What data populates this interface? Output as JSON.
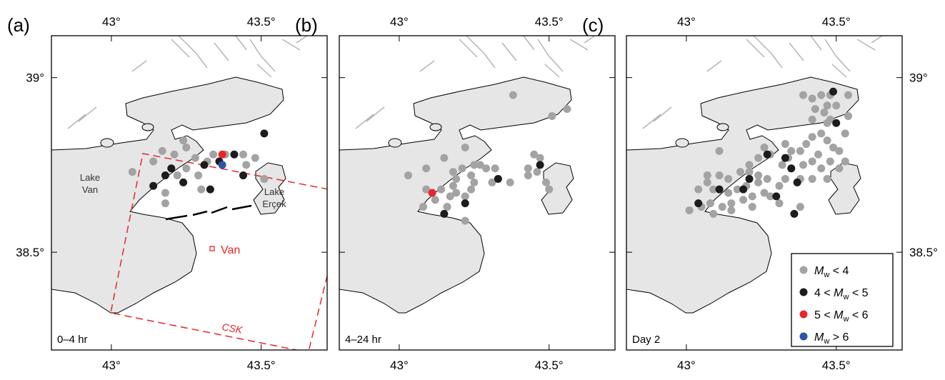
{
  "panels": [
    {
      "label": "(a)",
      "time_label": "0–4 hr",
      "annotations": {
        "lake_van": [
          "Lake",
          "Van"
        ],
        "lake_ercek": [
          "Lake",
          "Erçek"
        ],
        "city": "Van",
        "fault_zone": "CSK"
      },
      "events": [
        {
          "lon": [
            43.07,
            43.14,
            43.17,
            43.21,
            43.24,
            43.25,
            43.28,
            43.25,
            43.22,
            43.18,
            43.29,
            43.32,
            43.34,
            43.38,
            43.44,
            43.45,
            43.51,
            43.18,
            43.3,
            43.48
          ],
          "lat": [
            38.73,
            38.76,
            38.79,
            38.78,
            38.82,
            38.8,
            38.77,
            38.74,
            38.72,
            38.67,
            38.72,
            38.76,
            38.78,
            38.78,
            38.78,
            38.75,
            38.71,
            38.64,
            38.68,
            38.77
          ]
        },
        {
          "lon": [
            43.14,
            43.18,
            43.2,
            43.24,
            43.31,
            43.33,
            43.36,
            43.41,
            43.44,
            43.51
          ],
          "lat": [
            38.69,
            38.72,
            38.74,
            38.7,
            38.75,
            38.68,
            38.76,
            38.78,
            38.72,
            38.84
          ]
        },
        {
          "lon": [
            43.37
          ],
          "lat": [
            38.78
          ]
        },
        {
          "lon": [
            43.37
          ],
          "lat": [
            38.75
          ]
        }
      ]
    },
    {
      "label": "(b)",
      "time_label": "4–24 hr",
      "events": [
        {
          "lon": [
            43.38,
            43.51,
            43.56,
            43.22,
            43.15,
            43.03,
            43.09,
            43.18,
            43.21,
            43.25,
            43.27,
            43.24,
            43.25,
            43.19,
            43.18,
            43.14,
            43.17,
            43.19,
            43.22,
            43.24,
            43.09,
            43.12,
            43.08,
            43.16,
            43.22,
            43.29,
            43.32,
            43.37,
            43.45,
            43.47,
            43.43,
            43.46,
            43.43,
            43.49,
            43.5,
            43.31
          ],
          "lat": [
            38.95,
            38.89,
            38.91,
            38.8,
            38.77,
            38.72,
            38.74,
            38.73,
            38.74,
            38.75,
            38.75,
            38.72,
            38.7,
            38.71,
            38.69,
            38.68,
            38.66,
            38.67,
            38.66,
            38.68,
            38.68,
            38.65,
            38.63,
            38.63,
            38.59,
            38.74,
            38.74,
            38.7,
            38.78,
            38.77,
            38.74,
            38.73,
            38.72,
            38.7,
            38.68,
            38.7
          ]
        },
        {
          "lon": [
            43.33,
            43.22,
            43.15,
            43.47
          ],
          "lat": [
            38.71,
            38.64,
            38.61,
            38.75
          ]
        },
        {
          "lon": [
            43.11
          ],
          "lat": [
            38.67
          ]
        },
        {
          "lon": [],
          "lat": []
        }
      ]
    },
    {
      "label": "(c)",
      "time_label": "Day 2",
      "events": [
        {
          "lon": [
            43.39,
            43.42,
            43.45,
            43.48,
            43.47,
            43.43,
            43.46,
            43.5,
            43.54,
            43.42,
            43.47,
            43.42,
            43.45,
            43.54,
            43.53,
            43.47,
            43.49,
            43.51,
            43.44,
            43.4,
            43.33,
            43.35,
            43.38,
            43.34,
            43.32,
            43.35,
            43.39,
            43.42,
            43.45,
            43.48,
            43.51,
            43.53,
            43.47,
            43.42,
            43.38,
            43.33,
            43.28,
            43.26,
            43.24,
            43.21,
            43.18,
            43.14,
            43.11,
            43.07,
            43.04,
            43.09,
            43.14,
            43.17,
            43.2,
            43.24,
            43.27,
            43.31,
            43.26,
            43.22,
            43.19,
            43.15,
            43.12,
            43.08,
            43.05,
            43.01,
            43.09,
            43.15,
            43.22,
            43.28,
            43.31,
            43.21,
            43.24,
            43.11,
            43.07,
            43.48,
            43.38
          ],
          "lat": [
            38.95,
            38.94,
            38.95,
            38.95,
            38.92,
            38.91,
            38.9,
            38.92,
            38.95,
            38.88,
            38.87,
            38.83,
            38.84,
            38.89,
            38.84,
            38.82,
            38.8,
            38.79,
            38.78,
            38.81,
            38.81,
            38.79,
            38.79,
            38.77,
            38.75,
            38.74,
            38.75,
            38.76,
            38.74,
            38.76,
            38.74,
            38.76,
            38.71,
            38.71,
            38.71,
            38.71,
            38.78,
            38.8,
            38.77,
            38.75,
            38.73,
            38.71,
            38.72,
            38.7,
            38.68,
            38.68,
            38.67,
            38.68,
            38.69,
            38.7,
            38.71,
            38.69,
            38.67,
            38.66,
            38.65,
            38.64,
            38.63,
            38.64,
            38.63,
            38.62,
            38.61,
            38.62,
            38.63,
            38.66,
            38.64,
            38.73,
            38.72,
            38.79,
            38.72,
            38.88,
            38.63
          ]
        },
        {
          "lon": [
            43.49,
            43.5,
            43.27,
            43.33,
            43.35,
            43.21,
            43.37,
            43.19,
            43.11,
            43.3,
            43.04,
            43.36
          ],
          "lat": [
            38.96,
            38.87,
            38.78,
            38.77,
            38.74,
            38.71,
            38.7,
            38.68,
            38.68,
            38.66,
            38.64,
            38.61
          ]
        },
        {
          "lon": [],
          "lat": []
        },
        {
          "lon": [],
          "lat": []
        }
      ]
    }
  ],
  "classes": [
    {
      "symbol": "M",
      "subscript": "w",
      "suffix": " < 4",
      "color": "#a3a3a3"
    },
    {
      "prefix": "4 < ",
      "symbol": "M",
      "subscript": "w",
      "suffix": " < 5",
      "color": "#1c1c1c"
    },
    {
      "prefix": "5 < ",
      "symbol": "M",
      "subscript": "w",
      "suffix": " < 6",
      "color": "#e8262a"
    },
    {
      "symbol": "M",
      "subscript": "w",
      "suffix": " > 6",
      "color": "#2b55a6"
    }
  ],
  "xlim": [
    42.8,
    43.72
  ],
  "ylim": [
    38.22,
    39.12
  ],
  "xticks": [
    {
      "value": 43,
      "label": "43°"
    },
    {
      "value": 43.5,
      "label": "43.5°"
    }
  ],
  "yticks": [
    {
      "value": 39,
      "label": "39°"
    },
    {
      "value": 38.5,
      "label": "38.5°"
    }
  ]
}
